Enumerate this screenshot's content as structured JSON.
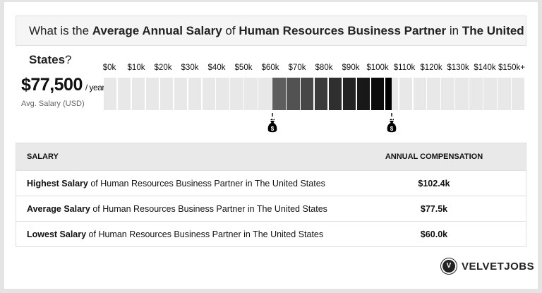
{
  "title": {
    "prefix": "What is the ",
    "avg": "Average Annual Salary",
    "of1": " of ",
    "job": "Human Resources Business Partner",
    "in": " in ",
    "loc": "The United States",
    "q": "?"
  },
  "summary": {
    "value": "$77,500",
    "unit": "/ year",
    "label": "Avg. Salary (USD)"
  },
  "chart_data": {
    "type": "bar",
    "x_ticks": [
      "$0k",
      "$10k",
      "$20k",
      "$30k",
      "$40k",
      "$50k",
      "$60k",
      "$70k",
      "$80k",
      "$90k",
      "$100k",
      "$110k",
      "$120k",
      "$130k",
      "$140k",
      "$150k+"
    ],
    "xlim": [
      0,
      150
    ],
    "range_low": 60.0,
    "range_high": 102.4,
    "average": 77.5,
    "markers": [
      "money-bag-icon",
      "money-bag-icon"
    ],
    "colors": {
      "empty": "#e8e8e8",
      "low": "#5e5e5e",
      "high": "#000000"
    }
  },
  "table": {
    "headers": [
      "SALARY",
      "ANNUAL COMPENSATION"
    ],
    "rows": [
      {
        "bold": "Highest Salary",
        "rest": " of Human Resources Business Partner in The United States",
        "value": "$102.4k"
      },
      {
        "bold": "Average Salary",
        "rest": " of Human Resources Business Partner in The United States",
        "value": "$77.5k"
      },
      {
        "bold": "Lowest Salary",
        "rest": " of Human Resources Business Partner in The United States",
        "value": "$60.0k"
      }
    ]
  },
  "logo": {
    "mark": "V",
    "text": "VELVETJOBS"
  }
}
